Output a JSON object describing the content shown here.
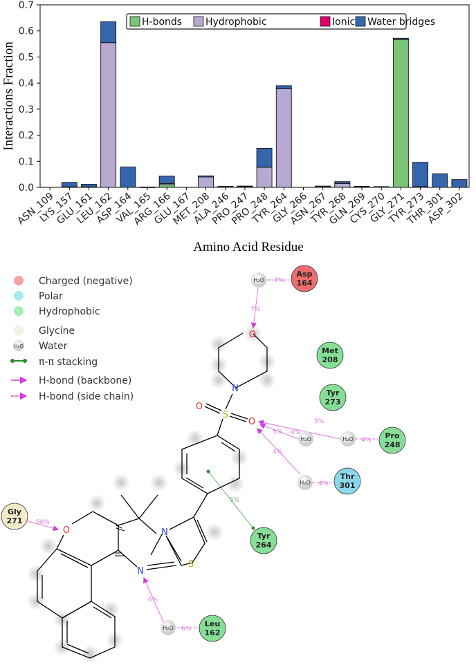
{
  "chart_data": {
    "type": "bar",
    "stacked": true,
    "ylabel": "Interactions Fraction",
    "xlabel": "Amino Acid Residue",
    "ylim": [
      0,
      0.7
    ],
    "yticks": [
      "0.0",
      "0.1",
      "0.2",
      "0.3",
      "0.4",
      "0.5",
      "0.6",
      "0.7"
    ],
    "grid": false,
    "legend_position": "top-right",
    "categories": [
      "ASN_109",
      "LYS_157",
      "GLU_161",
      "LEU_162",
      "ASP_164",
      "VAL_165",
      "ARG_166",
      "GLU_167",
      "MET_208",
      "ALA_246",
      "PRO_247",
      "PRO_248",
      "TYR_264",
      "GLY_266",
      "ASN_267",
      "TYR_268",
      "GLN_269",
      "CYS_270",
      "GLY_271",
      "TYR_273",
      "THR_301",
      "ASP_302"
    ],
    "series": [
      {
        "name": "H-bonds",
        "color": "#7ac577",
        "values": [
          0,
          0,
          0,
          0,
          0,
          0,
          0.01,
          0,
          0,
          0,
          0,
          0,
          0,
          0,
          0,
          0,
          0,
          0,
          0.567,
          0,
          0,
          0
        ]
      },
      {
        "name": "Hydrophobic",
        "color": "#b7a9d1",
        "values": [
          0,
          0.002,
          0.002,
          0.555,
          0,
          0.001,
          0.005,
          0,
          0.04,
          0,
          0.003,
          0.077,
          0.378,
          0,
          0.002,
          0.015,
          0.002,
          0.003,
          0,
          0.003,
          0,
          0
        ]
      },
      {
        "name": "Ionic",
        "color": "#e0006f",
        "values": [
          0,
          0,
          0,
          0,
          0,
          0,
          0,
          0,
          0,
          0,
          0,
          0,
          0,
          0,
          0,
          0,
          0,
          0,
          0,
          0,
          0,
          0
        ]
      },
      {
        "name": "Water bridges",
        "color": "#3565ad",
        "values": [
          0,
          0.017,
          0.01,
          0.08,
          0.078,
          0,
          0.028,
          0,
          0.004,
          0.004,
          0.002,
          0.073,
          0.012,
          0,
          0.003,
          0.007,
          0.002,
          0,
          0.005,
          0.093,
          0.052,
          0.03
        ]
      }
    ]
  },
  "interaction_diagram": {
    "legend": [
      {
        "label": "Charged (negative)",
        "color": "#f58b8b"
      },
      {
        "label": "Polar",
        "color": "#8ce0ec"
      },
      {
        "label": "Hydrophobic",
        "color": "#8fe59b"
      },
      {
        "label": "Glycine",
        "color": "#f1f2e4"
      },
      {
        "label": "Water",
        "symbol": "H₂O"
      },
      {
        "label": "π-π stacking",
        "color": "#2a8a2a"
      },
      {
        "label": "H-bond (backbone)",
        "color": "#d23ed8"
      },
      {
        "label": "H-bond (side chain)",
        "color": "#d23ed8"
      }
    ],
    "residues": [
      {
        "name": "Asp",
        "num": "164",
        "kind": "charged",
        "color": "#e87070"
      },
      {
        "name": "Met",
        "num": "208",
        "kind": "hydrophobic",
        "color": "#88e09a"
      },
      {
        "name": "Tyr",
        "num": "273",
        "kind": "hydrophobic",
        "color": "#88e09a"
      },
      {
        "name": "Pro",
        "num": "248",
        "kind": "hydrophobic",
        "color": "#88e09a"
      },
      {
        "name": "Thr",
        "num": "301",
        "kind": "polar",
        "color": "#8ad8ea"
      },
      {
        "name": "Tyr",
        "num": "264",
        "kind": "hydrophobic",
        "color": "#88e09a"
      },
      {
        "name": "Gly",
        "num": "271",
        "kind": "glycine",
        "color": "#f3eccb"
      },
      {
        "name": "Leu",
        "num": "162",
        "kind": "hydrophobic",
        "color": "#88e09a"
      }
    ],
    "water_label": "H₂O",
    "atom_labels": {
      "O": "O",
      "N": "N",
      "S": "S"
    },
    "percent_labels": [
      "7%",
      "7%",
      "5%",
      "4%",
      "5%",
      "4%",
      "4%",
      "4%",
      "5%",
      "56%",
      "6%",
      "6%"
    ]
  }
}
